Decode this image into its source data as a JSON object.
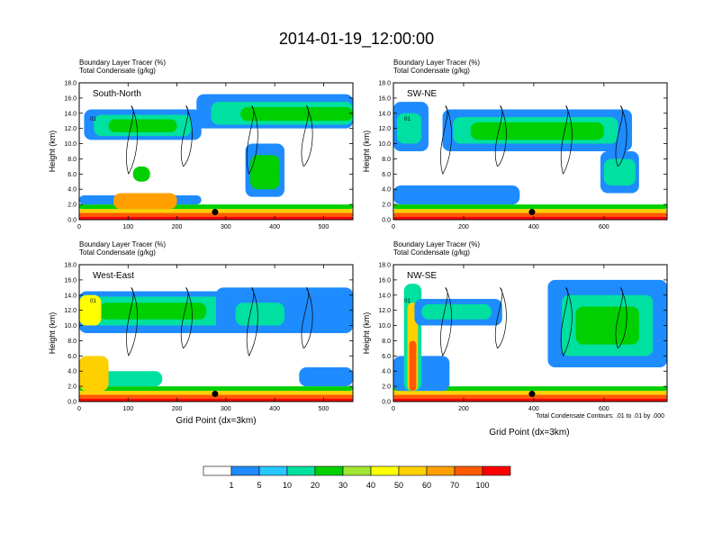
{
  "figure": {
    "title": "2014-01-19_12:00:00",
    "panel_header_line1": "Boundary Layer Tracer   (%)",
    "panel_header_line2": "Total Condensate   (g/kg)",
    "ylabel": "Height (km)",
    "xlabel": "Grid Point (dx=3km)",
    "contour_note": "Total Condensate Contours: .01 to .01 by .000",
    "contour_label": "01"
  },
  "colorbar": {
    "labels": [
      "1",
      "5",
      "10",
      "20",
      "30",
      "40",
      "50",
      "60",
      "70",
      "100"
    ],
    "colors": [
      "#ffffff",
      "#1e8cff",
      "#28c8ff",
      "#00e0a0",
      "#00d000",
      "#a0e632",
      "#ffff00",
      "#ffd000",
      "#ffa000",
      "#ff5a00",
      "#ff0000"
    ]
  },
  "chart_data": [
    {
      "type": "heatmap",
      "panel": "South-North",
      "x_range": [
        0,
        560
      ],
      "y_range": [
        0,
        18
      ],
      "x_ticks": [
        0,
        100,
        200,
        300,
        400,
        500
      ],
      "y_ticks": [
        "0.0",
        "2.0",
        "4.0",
        "6.0",
        "8.0",
        "10.0",
        "12.0",
        "14.0",
        "16.0",
        "18.0"
      ],
      "marker": {
        "x": 278,
        "y": 1.0
      },
      "bands": [
        {
          "x0": 0,
          "x1": 560,
          "y0": 0,
          "y1": 0.4,
          "color": "#ff0000"
        },
        {
          "x0": 0,
          "x1": 560,
          "y0": 0.4,
          "y1": 0.9,
          "color": "#ff5a00"
        },
        {
          "x0": 0,
          "x1": 560,
          "y0": 0.9,
          "y1": 1.4,
          "color": "#ffd000"
        },
        {
          "x0": 0,
          "x1": 560,
          "y0": 1.4,
          "y1": 2.0,
          "color": "#00d000"
        },
        {
          "x0": 0,
          "x1": 250,
          "y0": 2.0,
          "y1": 3.2,
          "color": "#1e8cff"
        },
        {
          "x0": 70,
          "x1": 200,
          "y0": 1.4,
          "y1": 3.5,
          "color": "#ffa000"
        },
        {
          "x0": 10,
          "x1": 250,
          "y0": 10.5,
          "y1": 14.5,
          "color": "#1e8cff"
        },
        {
          "x0": 30,
          "x1": 230,
          "y0": 11.0,
          "y1": 13.8,
          "color": "#00e0a0"
        },
        {
          "x0": 60,
          "x1": 200,
          "y0": 11.5,
          "y1": 13.2,
          "color": "#00d000"
        },
        {
          "x0": 240,
          "x1": 560,
          "y0": 12.0,
          "y1": 16.5,
          "color": "#1e8cff"
        },
        {
          "x0": 270,
          "x1": 560,
          "y0": 12.5,
          "y1": 15.5,
          "color": "#00e0a0"
        },
        {
          "x0": 330,
          "x1": 560,
          "y0": 13.0,
          "y1": 14.8,
          "color": "#00d000"
        },
        {
          "x0": 340,
          "x1": 420,
          "y0": 3.0,
          "y1": 10.0,
          "color": "#1e8cff"
        },
        {
          "x0": 350,
          "x1": 410,
          "y0": 4.0,
          "y1": 8.5,
          "color": "#00d000"
        },
        {
          "x0": 110,
          "x1": 145,
          "y0": 5.0,
          "y1": 7.0,
          "color": "#00d000"
        }
      ]
    },
    {
      "type": "heatmap",
      "panel": "SW-NE",
      "x_range": [
        0,
        780
      ],
      "y_range": [
        0,
        18
      ],
      "x_ticks": [
        0,
        200,
        400,
        600
      ],
      "y_ticks": [
        "0.0",
        "2.0",
        "4.0",
        "6.0",
        "8.0",
        "10.0",
        "12.0",
        "14.0",
        "16.0",
        "18.0"
      ],
      "marker": {
        "x": 395,
        "y": 1.0
      },
      "bands": [
        {
          "x0": 0,
          "x1": 780,
          "y0": 0,
          "y1": 0.4,
          "color": "#ff0000"
        },
        {
          "x0": 0,
          "x1": 780,
          "y0": 0.4,
          "y1": 0.9,
          "color": "#ff5a00"
        },
        {
          "x0": 0,
          "x1": 780,
          "y0": 0.9,
          "y1": 1.4,
          "color": "#ffd000"
        },
        {
          "x0": 0,
          "x1": 780,
          "y0": 1.4,
          "y1": 2.0,
          "color": "#00d000"
        },
        {
          "x0": 0,
          "x1": 360,
          "y0": 2.0,
          "y1": 4.5,
          "color": "#1e8cff"
        },
        {
          "x0": 0,
          "x1": 100,
          "y0": 9.0,
          "y1": 15.5,
          "color": "#1e8cff"
        },
        {
          "x0": 10,
          "x1": 80,
          "y0": 10.0,
          "y1": 14.0,
          "color": "#00e0a0"
        },
        {
          "x0": 140,
          "x1": 680,
          "y0": 9.0,
          "y1": 14.5,
          "color": "#1e8cff"
        },
        {
          "x0": 170,
          "x1": 640,
          "y0": 10.0,
          "y1": 13.5,
          "color": "#00e0a0"
        },
        {
          "x0": 220,
          "x1": 600,
          "y0": 10.5,
          "y1": 12.8,
          "color": "#00d000"
        },
        {
          "x0": 590,
          "x1": 700,
          "y0": 3.5,
          "y1": 9.0,
          "color": "#1e8cff"
        },
        {
          "x0": 600,
          "x1": 690,
          "y0": 4.5,
          "y1": 8.0,
          "color": "#00e0a0"
        }
      ]
    },
    {
      "type": "heatmap",
      "panel": "West-East",
      "x_range": [
        0,
        560
      ],
      "y_range": [
        0,
        18
      ],
      "x_ticks": [
        0,
        100,
        200,
        300,
        400,
        500
      ],
      "y_ticks": [
        "0.0",
        "2.0",
        "4.0",
        "6.0",
        "8.0",
        "10.0",
        "12.0",
        "14.0",
        "16.0",
        "18.0"
      ],
      "marker": {
        "x": 278,
        "y": 1.0
      },
      "bands": [
        {
          "x0": 0,
          "x1": 560,
          "y0": 0,
          "y1": 0.4,
          "color": "#ff0000"
        },
        {
          "x0": 0,
          "x1": 560,
          "y0": 0.4,
          "y1": 0.9,
          "color": "#ff5a00"
        },
        {
          "x0": 0,
          "x1": 560,
          "y0": 0.9,
          "y1": 1.4,
          "color": "#ffd000"
        },
        {
          "x0": 0,
          "x1": 560,
          "y0": 1.4,
          "y1": 2.0,
          "color": "#00d000"
        },
        {
          "x0": 0,
          "x1": 170,
          "y0": 2.0,
          "y1": 4.0,
          "color": "#00e0a0"
        },
        {
          "x0": 0,
          "x1": 60,
          "y0": 1.4,
          "y1": 6.0,
          "color": "#ffd000"
        },
        {
          "x0": 0,
          "x1": 330,
          "y0": 9.0,
          "y1": 14.5,
          "color": "#1e8cff"
        },
        {
          "x0": 20,
          "x1": 300,
          "y0": 10.0,
          "y1": 13.8,
          "color": "#00e0a0"
        },
        {
          "x0": 40,
          "x1": 260,
          "y0": 10.8,
          "y1": 13.0,
          "color": "#00d000"
        },
        {
          "x0": 0,
          "x1": 45,
          "y0": 10.0,
          "y1": 14.0,
          "color": "#ffff00"
        },
        {
          "x0": 280,
          "x1": 560,
          "y0": 9.0,
          "y1": 15.0,
          "color": "#1e8cff"
        },
        {
          "x0": 320,
          "x1": 420,
          "y0": 10.0,
          "y1": 13.0,
          "color": "#00e0a0"
        },
        {
          "x0": 450,
          "x1": 560,
          "y0": 2.0,
          "y1": 4.5,
          "color": "#1e8cff"
        }
      ]
    },
    {
      "type": "heatmap",
      "panel": "NW-SE",
      "x_range": [
        0,
        780
      ],
      "y_range": [
        0,
        18
      ],
      "x_ticks": [
        0,
        200,
        400,
        600
      ],
      "y_ticks": [
        "0.0",
        "2.0",
        "4.0",
        "6.0",
        "8.0",
        "10.0",
        "12.0",
        "14.0",
        "16.0",
        "18.0"
      ],
      "marker": {
        "x": 395,
        "y": 1.0
      },
      "bands": [
        {
          "x0": 0,
          "x1": 780,
          "y0": 0,
          "y1": 0.4,
          "color": "#ff0000"
        },
        {
          "x0": 0,
          "x1": 780,
          "y0": 0.4,
          "y1": 0.9,
          "color": "#ff5a00"
        },
        {
          "x0": 0,
          "x1": 780,
          "y0": 0.9,
          "y1": 1.4,
          "color": "#ffd000"
        },
        {
          "x0": 0,
          "x1": 780,
          "y0": 1.4,
          "y1": 2.0,
          "color": "#00d000"
        },
        {
          "x0": 0,
          "x1": 160,
          "y0": 1.4,
          "y1": 6.0,
          "color": "#1e8cff"
        },
        {
          "x0": 30,
          "x1": 80,
          "y0": 1.4,
          "y1": 15.5,
          "color": "#00e0a0"
        },
        {
          "x0": 40,
          "x1": 70,
          "y0": 1.4,
          "y1": 13.0,
          "color": "#ffd000"
        },
        {
          "x0": 45,
          "x1": 65,
          "y0": 1.4,
          "y1": 8.0,
          "color": "#ff5a00"
        },
        {
          "x0": 60,
          "x1": 310,
          "y0": 10.0,
          "y1": 13.5,
          "color": "#1e8cff"
        },
        {
          "x0": 80,
          "x1": 280,
          "y0": 10.8,
          "y1": 12.8,
          "color": "#00e0a0"
        },
        {
          "x0": 440,
          "x1": 780,
          "y0": 4.5,
          "y1": 16.0,
          "color": "#1e8cff"
        },
        {
          "x0": 480,
          "x1": 740,
          "y0": 6.0,
          "y1": 14.0,
          "color": "#00e0a0"
        },
        {
          "x0": 520,
          "x1": 700,
          "y0": 7.5,
          "y1": 12.5,
          "color": "#00d000"
        }
      ]
    }
  ]
}
